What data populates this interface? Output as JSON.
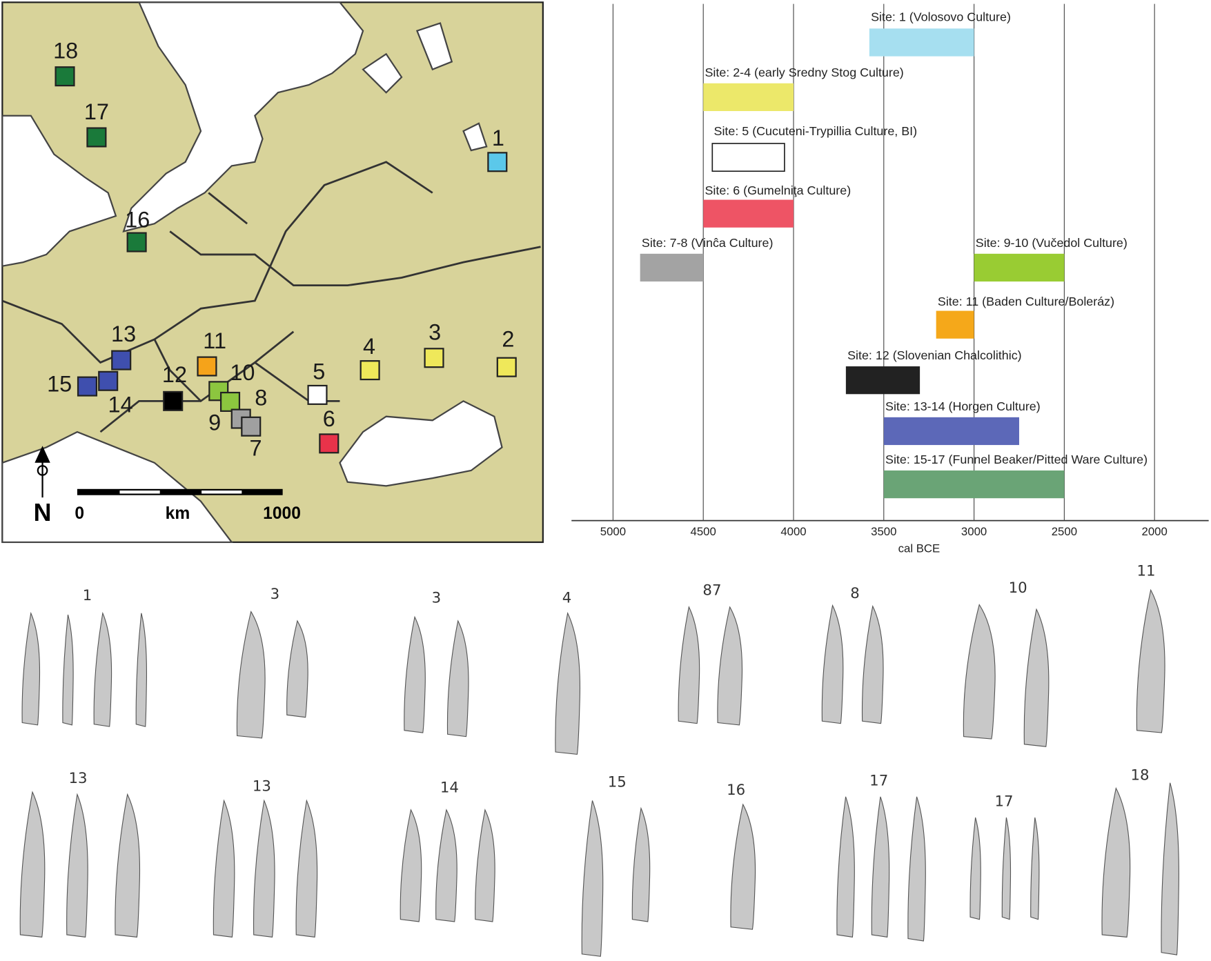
{
  "map": {
    "sites": [
      {
        "label": "18",
        "color": "#1a7a3a"
      },
      {
        "label": "17",
        "color": "#1a7a3a"
      },
      {
        "label": "16",
        "color": "#1a7a3a"
      },
      {
        "label": "1",
        "color": "#5bc8ea"
      },
      {
        "label": "13",
        "color": "#3f4fae"
      },
      {
        "label": "15",
        "color": "#3f4fae"
      },
      {
        "label": "14",
        "color": "#3f4fae"
      },
      {
        "label": "11",
        "color": "#f5a31a"
      },
      {
        "label": "12",
        "color": "#000000"
      },
      {
        "label": "10",
        "color": "#8cc63f"
      },
      {
        "label": "9",
        "color": "#8cc63f"
      },
      {
        "label": "8",
        "color": "#a0a0a0"
      },
      {
        "label": "7",
        "color": "#a0a0a0"
      },
      {
        "label": "5",
        "color": "#ffffff"
      },
      {
        "label": "6",
        "color": "#e8334a"
      },
      {
        "label": "4",
        "color": "#efe85a"
      },
      {
        "label": "3",
        "color": "#efe85a"
      },
      {
        "label": "2",
        "color": "#efe85a"
      }
    ],
    "scale": {
      "start": "0",
      "unit": "km",
      "end": "1000"
    },
    "north": "N"
  },
  "chart_data": {
    "type": "range_bar",
    "x_label": "cal BCE",
    "xlim": [
      5230,
      1700
    ],
    "xticks": [
      5000,
      4500,
      4000,
      3500,
      3000,
      2500,
      2000
    ],
    "grid": true,
    "bars": [
      {
        "name": "Site: 1 (Volosovo Culture)",
        "color": "#a6dff0",
        "start": 3580,
        "end": 3000
      },
      {
        "name": "Site: 2-4 (early Sredny Stog Culture)",
        "color": "#ece86a",
        "start": 4500,
        "end": 4000
      },
      {
        "name": "Site: 5 (Cucuteni-Trypillia Culture, BI)",
        "color": "#ffffff",
        "start": 4450,
        "end": 4050
      },
      {
        "name": "Site: 6 (Gumelniţa Culture)",
        "color": "#ee5465",
        "start": 4500,
        "end": 4000
      },
      {
        "name": "Site: 7-8 (Vinĉa Culture)",
        "color": "#a3a3a3",
        "start": 4850,
        "end": 4500
      },
      {
        "name": "Site: 9-10 (Vučedol Culture)",
        "color": "#99cc33",
        "start": 3000,
        "end": 2500
      },
      {
        "name": "Site: 11 (Baden Culture/Boleráz)",
        "color": "#f5a81a",
        "start": 3210,
        "end": 3000
      },
      {
        "name": "Site: 12 (Slovenian Chalcolithic)",
        "color": "#222222",
        "start": 3710,
        "end": 3300
      },
      {
        "name": "Site: 13-14 (Horgen Culture)",
        "color": "#5c68b8",
        "start": 3500,
        "end": 2750
      },
      {
        "name": "Site: 15-17 (Funnel Beaker/Pitted Ware Culture)",
        "color": "#6aa476",
        "start": 3500,
        "end": 2500
      }
    ]
  },
  "artifacts": {
    "labels": [
      "1",
      "3",
      "3",
      "4",
      "87",
      "8",
      "10",
      "11",
      "13",
      "13",
      "14",
      "15",
      "16",
      "17",
      "17",
      "18"
    ]
  }
}
